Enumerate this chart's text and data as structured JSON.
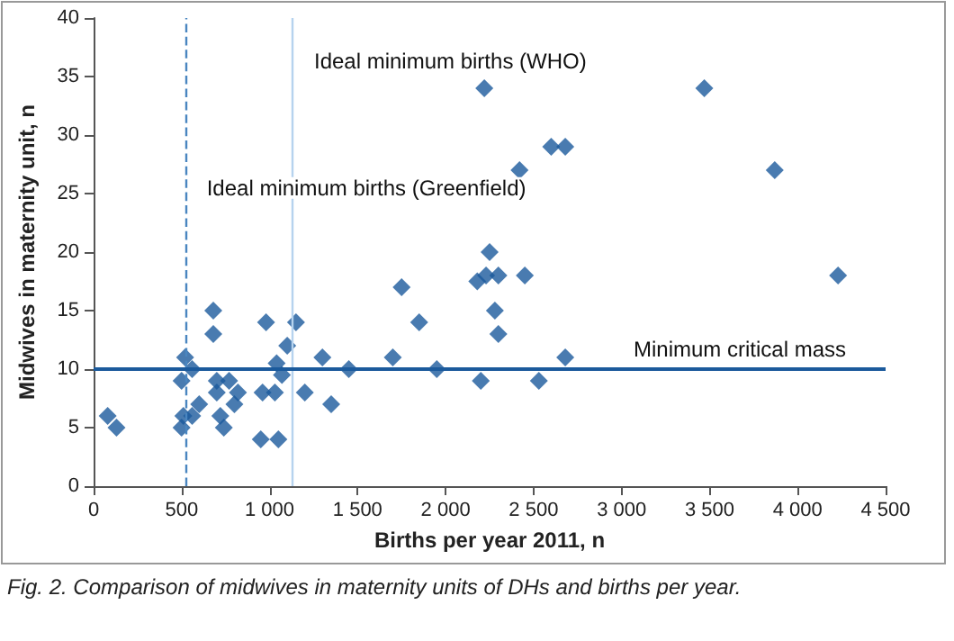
{
  "chart_data": {
    "type": "scatter",
    "xlabel": "Births per year 2011, n",
    "ylabel": "Midwives in maternity unit, n",
    "x": [
      80,
      130,
      500,
      510,
      500,
      520,
      560,
      560,
      600,
      680,
      680,
      700,
      700,
      720,
      740,
      770,
      800,
      820,
      950,
      960,
      980,
      1030,
      1050,
      1040,
      1070,
      1100,
      1150,
      1200,
      1300,
      1350,
      1450,
      1700,
      1750,
      1850,
      1950,
      2180,
      2200,
      2220,
      2230,
      2250,
      2300,
      2280,
      2300,
      2420,
      2450,
      2530,
      2600,
      2680,
      2680,
      3470,
      3870,
      4230
    ],
    "series": [
      {
        "color": "#1b5a9c",
        "values": [
          6,
          5,
          9,
          6,
          5,
          11,
          6,
          10,
          7,
          15,
          13,
          9,
          8,
          6,
          5,
          9,
          7,
          8,
          4,
          8,
          14,
          8,
          4,
          10.5,
          9.5,
          12,
          14,
          8,
          11,
          7,
          10,
          11,
          17,
          14,
          10,
          17.5,
          9,
          34,
          18,
          20,
          18,
          15,
          13,
          27,
          18,
          9,
          29,
          29,
          11,
          34,
          27,
          18
        ]
      }
    ],
    "marker": "diamond",
    "grid": false,
    "xlim": [
      0,
      4500
    ],
    "xticks": [
      0,
      500,
      {
        "value": 1000,
        "label": "1 000"
      },
      {
        "value": 1500,
        "label": "1 500"
      },
      {
        "value": 2000,
        "label": "2 000"
      },
      {
        "value": 2500,
        "label": "2 500"
      },
      {
        "value": 3000,
        "label": "3 000"
      },
      {
        "value": 3500,
        "label": "3 500"
      },
      {
        "value": 4000,
        "label": "4 000"
      },
      {
        "value": 4500,
        "label": "4 500"
      }
    ],
    "ylim": [
      0,
      40
    ],
    "yticks": [
      0,
      5,
      10,
      15,
      20,
      25,
      30,
      35,
      40
    ],
    "ref_lines": [
      {
        "axis": "x",
        "value": 520,
        "label": "Ideal minimum births (Greenfield)",
        "color": "#4a86c0",
        "line_style": "dashed"
      },
      {
        "axis": "x",
        "value": 1130,
        "label": "Ideal minimum births (WHO)",
        "color": "#b6d3ee",
        "line_style": "solid"
      },
      {
        "axis": "y",
        "value": 10,
        "label": "Minimum critical mass",
        "color": "#1b5a9c",
        "line_style": "solid"
      }
    ],
    "annotations": [
      "Fig. 2. Comparison of midwives in maternity units of DHs and births per year."
    ]
  }
}
